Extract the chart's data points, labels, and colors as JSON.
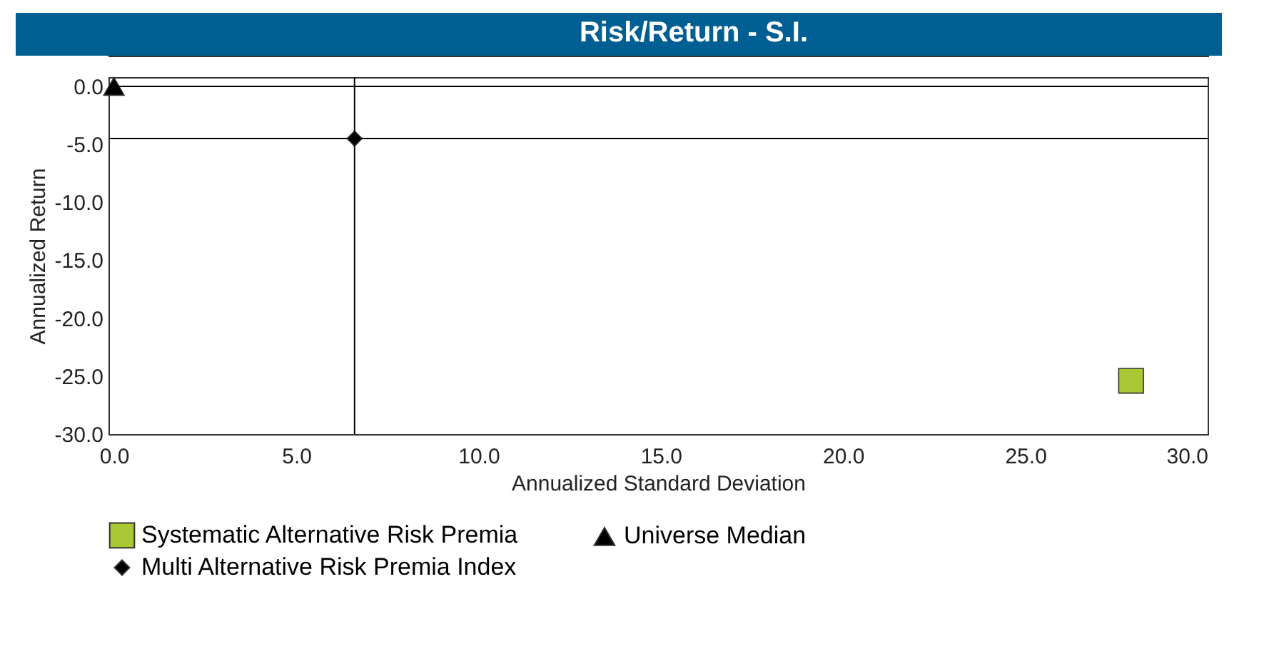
{
  "chart_data": {
    "type": "scatter",
    "title": "Risk/Return - S.I.",
    "xlabel": "Annualized Standard Deviation",
    "ylabel": "Annualized Return",
    "series": [
      {
        "name": "Systematic Alternative Risk Premia",
        "color": "#a8c834",
        "marker": "square",
        "x": [
          27.9
        ],
        "values": [
          -25.4
        ]
      },
      {
        "name": "Universe Median",
        "color": "#000000",
        "marker": "triangle",
        "x": [
          0.0
        ],
        "values": [
          0.0
        ]
      },
      {
        "name": "Multi Alternative Risk Premia Index",
        "color": "#000000",
        "marker": "diamond",
        "x": [
          6.6
        ],
        "values": [
          -4.5
        ]
      }
    ],
    "xlim": [
      -0.15,
      30
    ],
    "ylim": [
      -30,
      0.8
    ],
    "xticks": [
      {
        "value": 0,
        "label": "0.0"
      },
      {
        "value": 5,
        "label": "5.0"
      },
      {
        "value": 10,
        "label": "10.0"
      },
      {
        "value": 15,
        "label": "15.0"
      },
      {
        "value": 20,
        "label": "20.0"
      },
      {
        "value": 25,
        "label": "25.0"
      },
      {
        "value": 30,
        "label": "30.0"
      }
    ],
    "yticks": [
      {
        "value": 0,
        "label": "0.0"
      },
      {
        "value": -5,
        "label": "-5.0"
      },
      {
        "value": -10,
        "label": "-10.0"
      },
      {
        "value": -15,
        "label": "-15.0"
      },
      {
        "value": -20,
        "label": "-20.0"
      },
      {
        "value": -25,
        "label": "-25.0"
      },
      {
        "value": -30,
        "label": "-30.0"
      }
    ],
    "ref_lines": [
      {
        "axis": "x",
        "value": 6.6,
        "color": "#000000"
      },
      {
        "axis": "y",
        "value": -4.5,
        "color": "#000000"
      },
      {
        "axis": "y",
        "value": 0,
        "color": "#000000"
      }
    ],
    "grid": false,
    "legend": "bottom"
  }
}
